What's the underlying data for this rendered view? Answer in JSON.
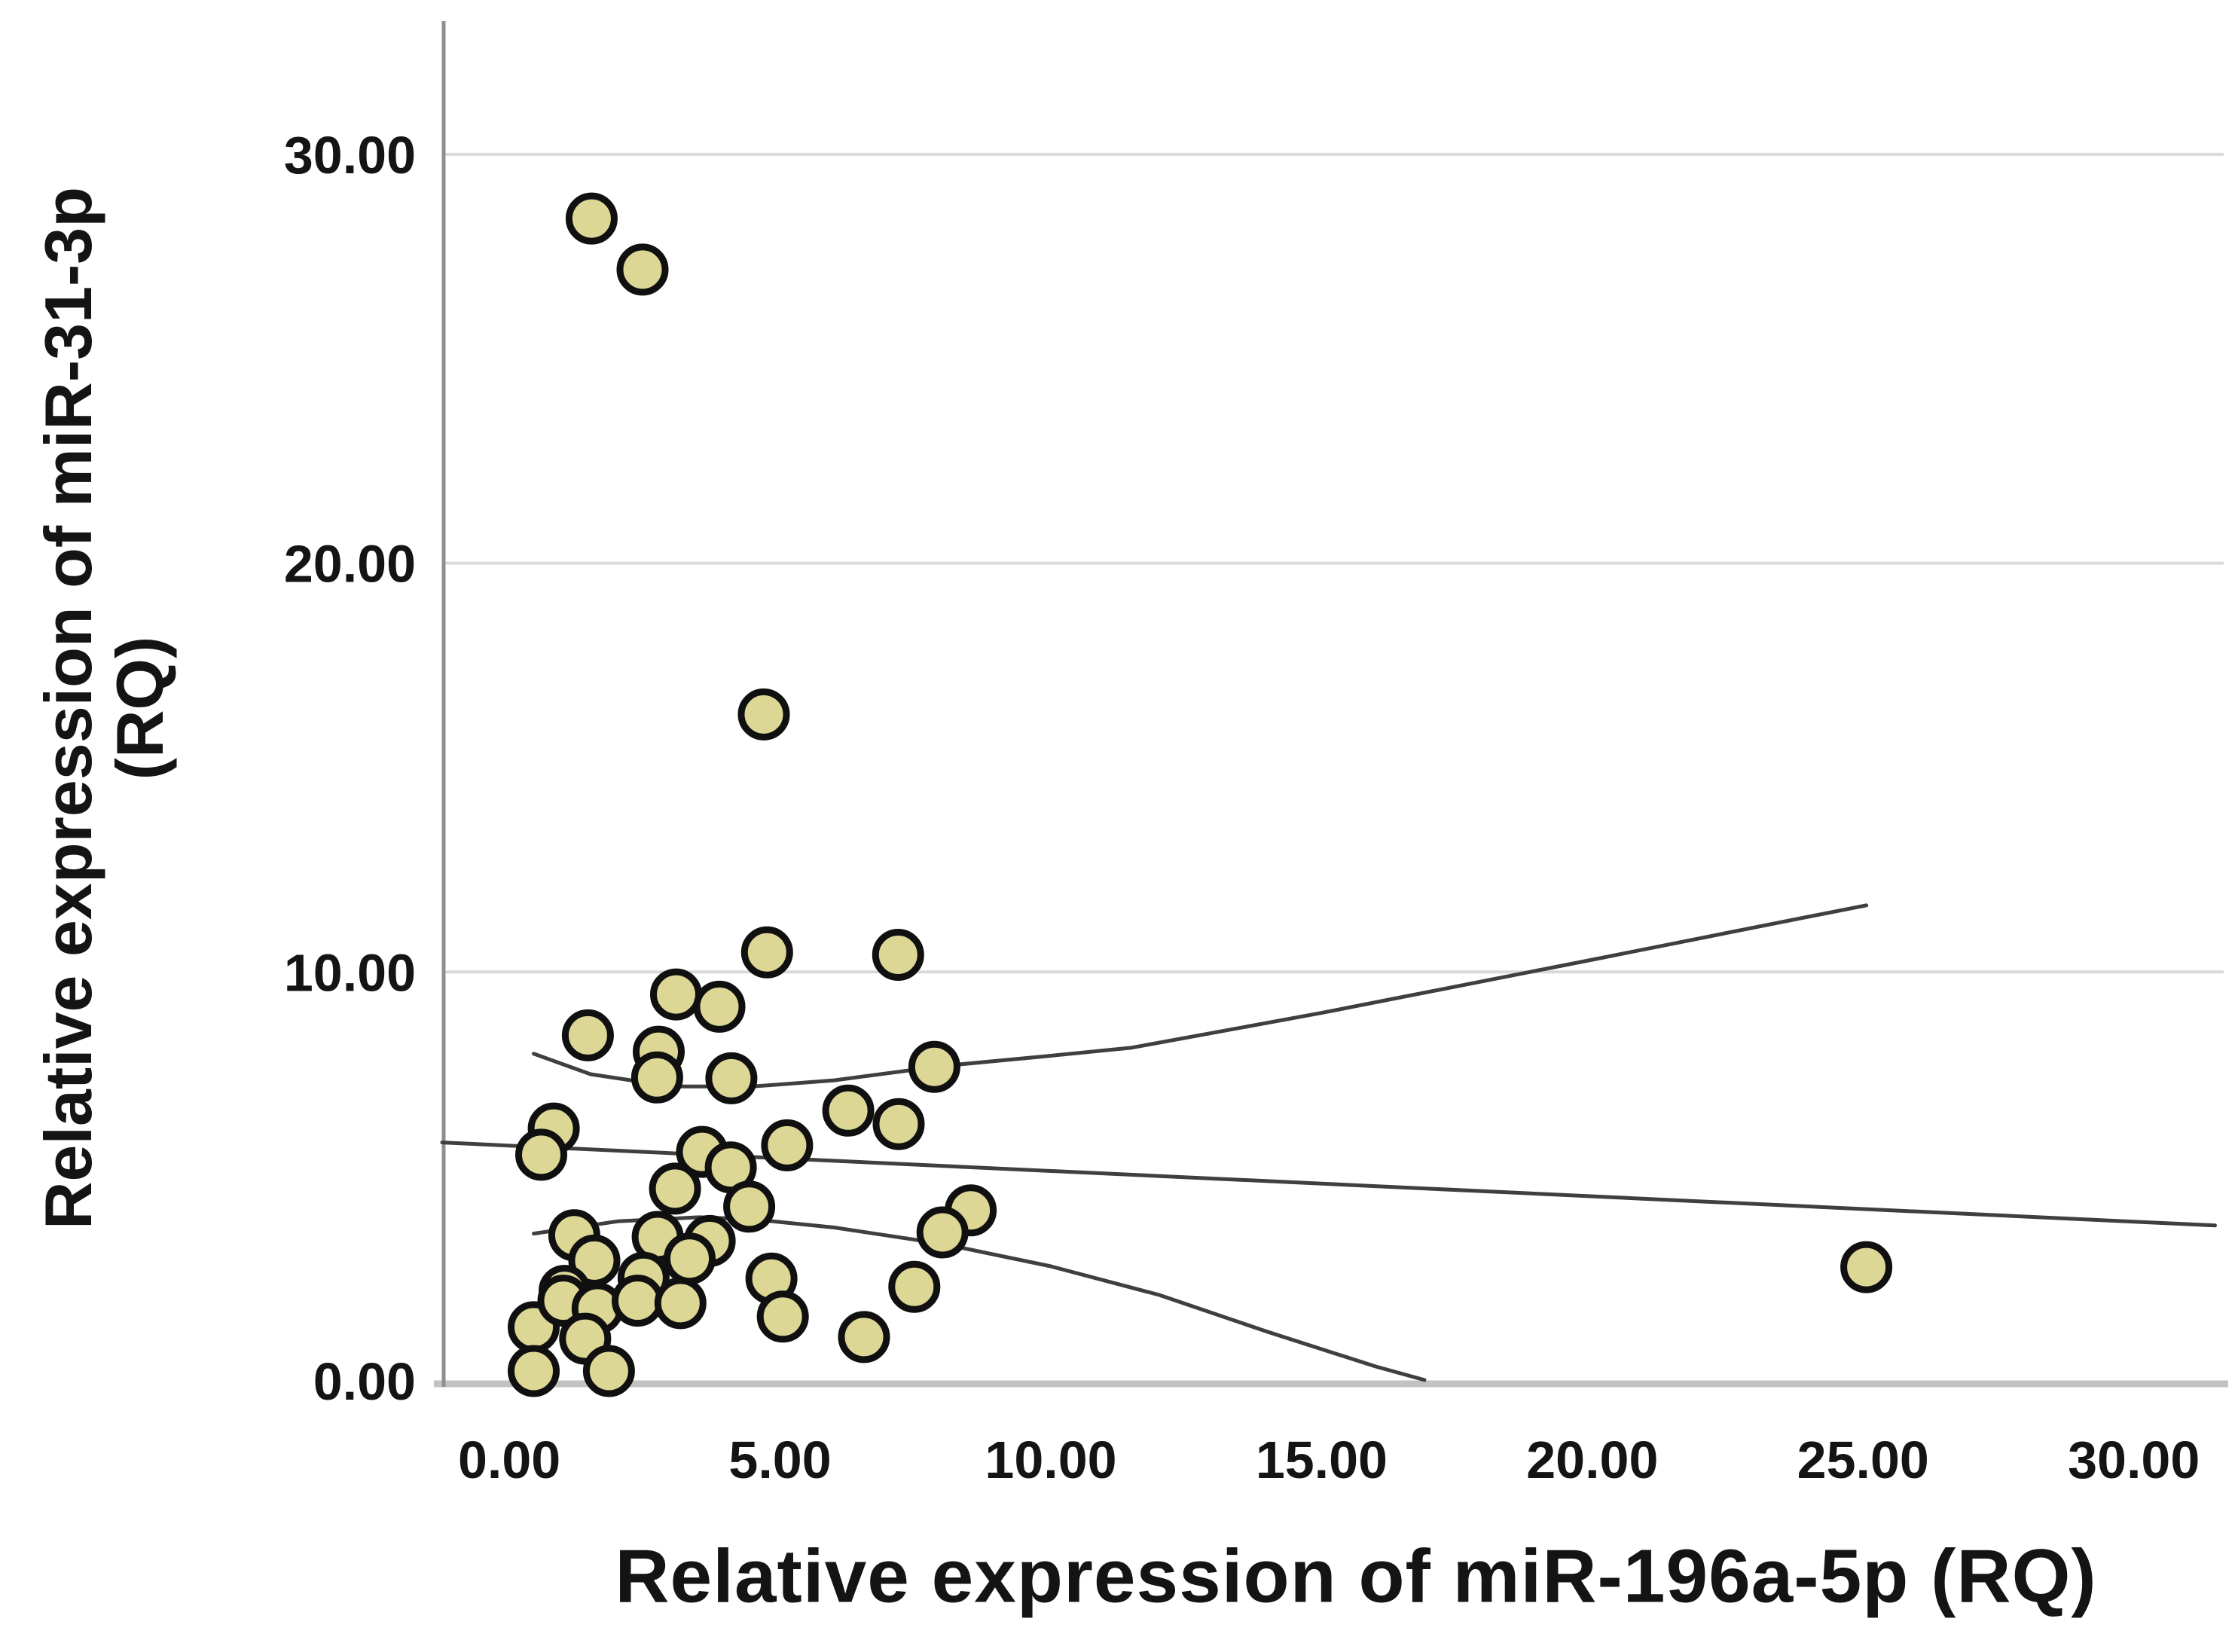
{
  "chart_data": {
    "type": "scatter",
    "title": "",
    "xlabel": "Relative expression of miR-196a-5p (RQ)",
    "ylabel_lines": [
      "Relative expression of miR-31-3p",
      "(RQ)"
    ],
    "x_tick_values": [
      0,
      5,
      10,
      15,
      20,
      25,
      30
    ],
    "x_tick_labels": [
      "0.00",
      "5.00",
      "10.00",
      "15.00",
      "20.00",
      "25.00",
      "30.00"
    ],
    "y_tick_values": [
      0,
      10,
      20,
      30
    ],
    "y_tick_labels": [
      "0.00",
      "10.00",
      "20.00",
      "30.00"
    ],
    "xlim": [
      -1.24,
      31.66
    ],
    "ylim": [
      0,
      33.13
    ],
    "grid": "horizontal-only",
    "legend": "none",
    "points": [
      [
        1.52,
        28.43
      ],
      [
        2.46,
        27.18
      ],
      [
        4.7,
        16.3
      ],
      [
        4.76,
        10.48
      ],
      [
        7.18,
        10.42
      ],
      [
        3.08,
        9.45
      ],
      [
        3.88,
        9.15
      ],
      [
        1.45,
        8.45
      ],
      [
        2.76,
        8.05
      ],
      [
        2.73,
        7.42
      ],
      [
        4.1,
        7.4
      ],
      [
        7.85,
        7.68
      ],
      [
        6.26,
        6.61
      ],
      [
        7.19,
        6.28
      ],
      [
        0.82,
        6.17
      ],
      [
        0.59,
        5.53
      ],
      [
        5.13,
        5.76
      ],
      [
        3.56,
        5.6
      ],
      [
        4.09,
        5.22
      ],
      [
        3.06,
        4.7
      ],
      [
        4.43,
        4.26
      ],
      [
        8.52,
        4.17
      ],
      [
        8.0,
        3.63
      ],
      [
        1.2,
        3.56
      ],
      [
        1.57,
        2.94
      ],
      [
        2.74,
        3.52
      ],
      [
        3.7,
        3.42
      ],
      [
        3.33,
        2.99
      ],
      [
        1.02,
        2.2
      ],
      [
        2.48,
        2.52
      ],
      [
        4.84,
        2.5
      ],
      [
        5.05,
        1.57
      ],
      [
        0.45,
        1.31
      ],
      [
        1.0,
        1.96
      ],
      [
        1.63,
        1.77
      ],
      [
        2.37,
        1.96
      ],
      [
        3.16,
        1.9
      ],
      [
        1.4,
        1.03
      ],
      [
        0.45,
        0.24
      ],
      [
        1.84,
        0.24
      ],
      [
        7.48,
        2.3
      ],
      [
        6.55,
        1.07
      ],
      [
        25.06,
        2.78
      ]
    ],
    "fit_line": [
      [
        -1.24,
        5.83
      ],
      [
        31.5,
        3.8
      ]
    ],
    "ci_upper": [
      [
        0.45,
        8.0
      ],
      [
        1.5,
        7.5
      ],
      [
        3.0,
        7.2
      ],
      [
        4.5,
        7.2
      ],
      [
        6.0,
        7.35
      ],
      [
        8.0,
        7.7
      ],
      [
        10.0,
        7.95
      ],
      [
        11.5,
        8.15
      ],
      [
        15.0,
        9.0
      ],
      [
        20.0,
        10.3
      ],
      [
        23.3,
        11.17
      ],
      [
        25.06,
        11.63
      ]
    ],
    "ci_lower": [
      [
        0.45,
        3.6
      ],
      [
        2.0,
        3.9
      ],
      [
        3.5,
        4.0
      ],
      [
        4.5,
        3.95
      ],
      [
        6.0,
        3.75
      ],
      [
        8.0,
        3.35
      ],
      [
        10.0,
        2.8
      ],
      [
        12.0,
        2.1
      ],
      [
        14.0,
        1.2
      ],
      [
        16.0,
        0.35
      ],
      [
        16.9,
        0.02
      ]
    ],
    "colors": {
      "point_fill": "#ddd795",
      "point_stroke": "#101010",
      "line": "#3f3f3f",
      "grid": "#d9d9d9",
      "y_axis_line": "#8f8f8f",
      "x_axis_line": "#c2c2c2",
      "text": "#141414",
      "background": "#ffffff"
    }
  }
}
